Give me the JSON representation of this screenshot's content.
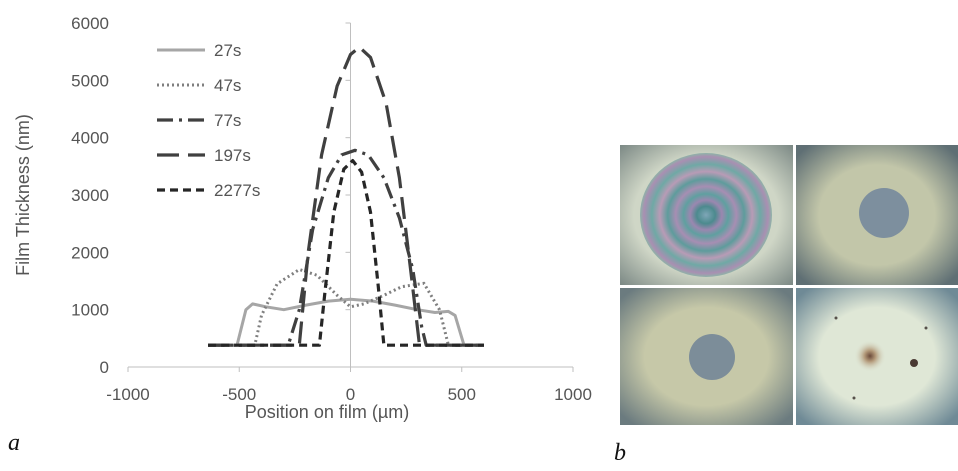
{
  "chart_data": {
    "type": "line",
    "xlabel": "Position on film (µm)",
    "ylabel": "Film Thickness (nm)",
    "xlim": [
      -1000,
      1000
    ],
    "ylim": [
      0,
      6000
    ],
    "x_ticks": [
      "-1000",
      "-500",
      "0",
      "500",
      "1000"
    ],
    "y_ticks": [
      "0",
      "1000",
      "2000",
      "3000",
      "4000",
      "5000",
      "6000"
    ],
    "grid": false,
    "legend_position": "top-left",
    "series": [
      {
        "name": "27s",
        "style": "solid",
        "color": "#a6a6a6",
        "points": [
          [
            -640,
            380
          ],
          [
            -510,
            380
          ],
          [
            -470,
            1000
          ],
          [
            -440,
            1100
          ],
          [
            -380,
            1050
          ],
          [
            -300,
            1000
          ],
          [
            -200,
            1080
          ],
          [
            -100,
            1150
          ],
          [
            0,
            1180
          ],
          [
            100,
            1150
          ],
          [
            200,
            1080
          ],
          [
            300,
            1000
          ],
          [
            380,
            950
          ],
          [
            440,
            970
          ],
          [
            470,
            900
          ],
          [
            510,
            380
          ],
          [
            600,
            380
          ]
        ]
      },
      {
        "name": "47s",
        "style": "dotted",
        "color": "#7f7f7f",
        "points": [
          [
            -640,
            380
          ],
          [
            -430,
            380
          ],
          [
            -400,
            900
          ],
          [
            -330,
            1450
          ],
          [
            -230,
            1700
          ],
          [
            -150,
            1600
          ],
          [
            -60,
            1250
          ],
          [
            0,
            1050
          ],
          [
            60,
            1100
          ],
          [
            150,
            1250
          ],
          [
            230,
            1400
          ],
          [
            330,
            1460
          ],
          [
            400,
            1000
          ],
          [
            440,
            380
          ],
          [
            600,
            380
          ]
        ]
      },
      {
        "name": "77s",
        "style": "dashdot",
        "color": "#404040",
        "points": [
          [
            -640,
            380
          ],
          [
            -280,
            380
          ],
          [
            -230,
            1000
          ],
          [
            -170,
            2400
          ],
          [
            -100,
            3300
          ],
          [
            -40,
            3700
          ],
          [
            20,
            3780
          ],
          [
            80,
            3700
          ],
          [
            150,
            3300
          ],
          [
            220,
            2600
          ],
          [
            280,
            1700
          ],
          [
            320,
            700
          ],
          [
            340,
            380
          ],
          [
            600,
            380
          ]
        ]
      },
      {
        "name": "197s",
        "style": "longdash",
        "color": "#404040",
        "points": [
          [
            -640,
            380
          ],
          [
            -230,
            380
          ],
          [
            -190,
            2000
          ],
          [
            -130,
            3700
          ],
          [
            -60,
            4900
          ],
          [
            0,
            5450
          ],
          [
            40,
            5580
          ],
          [
            90,
            5400
          ],
          [
            160,
            4600
          ],
          [
            220,
            3300
          ],
          [
            270,
            1700
          ],
          [
            310,
            380
          ],
          [
            600,
            380
          ]
        ]
      },
      {
        "name": "2277s",
        "style": "shortdash",
        "color": "#262626",
        "points": [
          [
            -640,
            380
          ],
          [
            -140,
            380
          ],
          [
            -115,
            1300
          ],
          [
            -75,
            2700
          ],
          [
            -30,
            3450
          ],
          [
            10,
            3600
          ],
          [
            50,
            3400
          ],
          [
            90,
            2700
          ],
          [
            125,
            1400
          ],
          [
            150,
            380
          ],
          [
            600,
            380
          ]
        ]
      }
    ]
  },
  "labels": {
    "panel_a": "a",
    "panel_b": "b"
  },
  "photos": [
    {
      "name": "interference-rings",
      "background": "#6fa0a4"
    },
    {
      "name": "pale-film-dark-center",
      "background": "#b7bfa6"
    },
    {
      "name": "film-large-hole",
      "background": "#bec2a5"
    },
    {
      "name": "film-spotted",
      "background": "#d4e0d2"
    }
  ]
}
